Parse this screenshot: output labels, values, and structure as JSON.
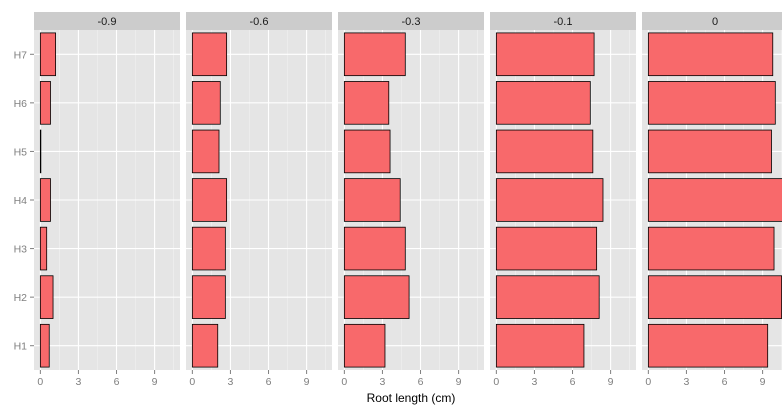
{
  "chart_data": {
    "type": "bar",
    "orientation": "horizontal",
    "xlabel": "Root length (cm)",
    "ylabel": "",
    "xlim": [
      -0.5,
      11
    ],
    "xticks": [
      0,
      3,
      6,
      9
    ],
    "categories": [
      "H1",
      "H2",
      "H3",
      "H4",
      "H5",
      "H6",
      "H7"
    ],
    "grid": true,
    "colors": {
      "bar": "#F8696B",
      "panel": "#E5E5E5",
      "strip": "#CCCCCC",
      "grid_major": "#FFFFFF",
      "grid_minor": "#F2F2F2"
    },
    "panels": [
      {
        "label": "-0.9",
        "values": [
          0.7,
          1.0,
          0.5,
          0.8,
          0.0,
          0.8,
          1.2
        ]
      },
      {
        "label": "-0.6",
        "values": [
          2.0,
          2.6,
          2.6,
          2.7,
          2.1,
          2.2,
          2.7
        ]
      },
      {
        "label": "-0.3",
        "values": [
          3.2,
          5.1,
          4.8,
          4.4,
          3.6,
          3.5,
          4.8
        ]
      },
      {
        "label": "-0.1",
        "values": [
          6.9,
          8.1,
          7.9,
          8.4,
          7.6,
          7.4,
          7.7
        ]
      },
      {
        "label": "0",
        "values": [
          9.4,
          10.5,
          9.9,
          11.0,
          9.7,
          10.0,
          9.8
        ]
      }
    ]
  }
}
